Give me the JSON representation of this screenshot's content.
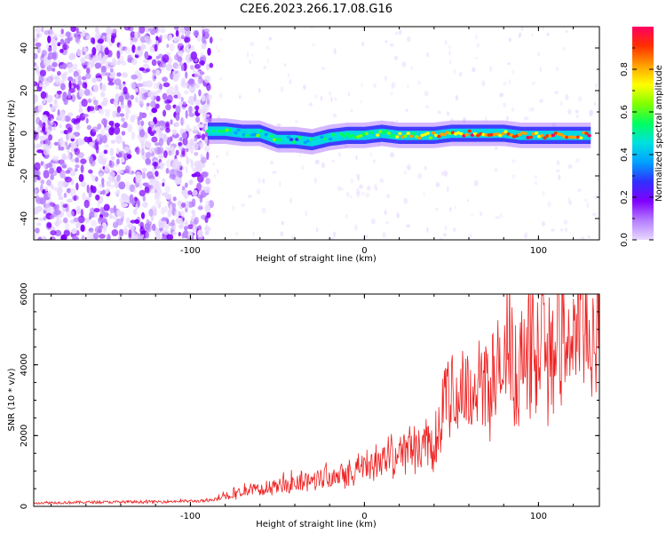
{
  "figure_title": "C2E6.2023.266.17.08.G16",
  "chart_data": [
    {
      "type": "heatmap",
      "title": "C2E6.2023.266.17.08.G16",
      "xlabel": "Height of straight line (km)",
      "ylabel": "Frequency (Hz)",
      "xlim": [
        -190,
        135
      ],
      "ylim": [
        -50,
        50
      ],
      "x_ticks": [
        -100,
        0,
        100
      ],
      "y_ticks": [
        -40,
        -20,
        0,
        20,
        40
      ],
      "colorbar": {
        "label": "Normalized spectral amplitude",
        "range": [
          0,
          1
        ],
        "ticks": [
          "0.0",
          "0.2",
          "0.4",
          "0.6",
          "0.8"
        ],
        "colormap": [
          "#e8d9ff",
          "#b57dff",
          "#8000ff",
          "#3030ff",
          "#00a0ff",
          "#00e0e0",
          "#00ff60",
          "#80ff00",
          "#ffff00",
          "#ffa000",
          "#ff3000",
          "#ff0060"
        ]
      },
      "ridge_frequency": {
        "x": [
          -90,
          -80,
          -70,
          -60,
          -50,
          -40,
          -30,
          -20,
          -10,
          0,
          10,
          20,
          30,
          40,
          50,
          60,
          70,
          80,
          90,
          100,
          110,
          120,
          130
        ],
        "y": [
          1,
          1,
          0,
          0,
          -3,
          -3,
          -4,
          -2,
          -1,
          -1,
          0,
          -1,
          -1,
          -1,
          0,
          0,
          0,
          0,
          -1,
          -1,
          -1,
          -1,
          -1
        ]
      },
      "ridge_amplitude": {
        "x": [
          -90,
          -80,
          -70,
          -60,
          -50,
          -40,
          -30,
          -20,
          -10,
          0,
          10,
          20,
          30,
          40,
          50,
          60,
          70,
          80,
          90,
          100,
          110,
          120,
          130
        ],
        "y": [
          0.45,
          0.5,
          0.45,
          0.5,
          0.45,
          0.4,
          0.45,
          0.45,
          0.5,
          0.55,
          0.6,
          0.65,
          0.7,
          0.7,
          0.8,
          0.85,
          0.85,
          0.8,
          0.85,
          0.85,
          0.85,
          0.85,
          0.85
        ]
      },
      "noise_region_x": [
        -190,
        -88
      ]
    },
    {
      "type": "line",
      "xlabel": "Height of straight line (km)",
      "ylabel": "SNR (10 * v/v)",
      "xlim": [
        -190,
        135
      ],
      "ylim": [
        0,
        6000
      ],
      "x_ticks": [
        -100,
        0,
        100
      ],
      "y_ticks": [
        0,
        2000,
        4000,
        6000
      ],
      "series": [
        {
          "color": "#ee2222",
          "x": [
            -190,
            -150,
            -120,
            -100,
            -90,
            -80,
            -70,
            -60,
            -50,
            -40,
            -30,
            -20,
            -10,
            0,
            10,
            20,
            30,
            40,
            42,
            45,
            50,
            60,
            70,
            80,
            90,
            100,
            110,
            120,
            130,
            135
          ],
          "y": [
            100,
            120,
            130,
            150,
            150,
            300,
            400,
            500,
            550,
            650,
            750,
            900,
            1000,
            1100,
            1350,
            1500,
            1700,
            1800,
            2100,
            2950,
            3050,
            3300,
            3550,
            3800,
            4100,
            4400,
            4650,
            4850,
            5050,
            5150
          ]
        }
      ]
    }
  ]
}
